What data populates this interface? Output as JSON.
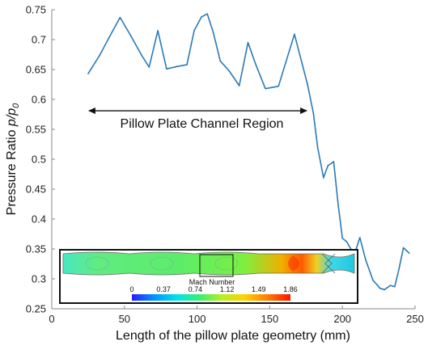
{
  "chart_data": {
    "type": "line",
    "title": "",
    "xlabel": "Length of the pillow plate geometry (mm)",
    "ylabel_main": "Pressure Ratio ",
    "ylabel_var": "p/p",
    "ylabel_sub": "0",
    "xlim": [
      0,
      250
    ],
    "ylim": [
      0.25,
      0.75
    ],
    "xticks": [
      0,
      50,
      100,
      150,
      200,
      250
    ],
    "yticks": [
      0.25,
      0.3,
      0.35,
      0.4,
      0.45,
      0.5,
      0.55,
      0.6,
      0.65,
      0.7,
      0.75
    ],
    "grid": false,
    "series": [
      {
        "color": "#2a7ab8",
        "x": [
          25,
          33,
          40,
          47,
          54,
          62,
          67,
          73,
          79,
          86,
          93,
          98,
          103,
          107,
          111,
          116,
          122,
          129,
          135,
          140,
          147,
          156,
          167,
          176,
          180,
          183,
          187,
          190,
          194,
          197,
          200,
          203,
          206,
          208,
          212,
          216,
          221,
          226,
          229,
          233,
          236,
          239,
          242,
          246
        ],
        "y": [
          0.643,
          0.674,
          0.706,
          0.737,
          0.708,
          0.673,
          0.654,
          0.715,
          0.651,
          0.655,
          0.658,
          0.715,
          0.738,
          0.743,
          0.713,
          0.664,
          0.648,
          0.623,
          0.695,
          0.661,
          0.618,
          0.622,
          0.709,
          0.625,
          0.577,
          0.519,
          0.469,
          0.489,
          0.496,
          0.426,
          0.368,
          0.362,
          0.349,
          0.339,
          0.369,
          0.332,
          0.298,
          0.284,
          0.282,
          0.289,
          0.287,
          0.317,
          0.352,
          0.343
        ]
      }
    ],
    "annotation": {
      "text": "Pillow Plate Channel Region",
      "x_start": 25,
      "x_end": 176,
      "y": 0.581
    },
    "inset": {
      "colorbar_title": "Mach Number",
      "colorbar_ticks": [
        "0",
        "0.37",
        "0.74",
        "1.12",
        "1.49",
        "1.86"
      ],
      "colorbar_colors": [
        "#2a1cff",
        "#0096ff",
        "#00e5e5",
        "#38f070",
        "#b8f020",
        "#ffd000",
        "#ff7a00",
        "#ff1400"
      ]
    }
  }
}
